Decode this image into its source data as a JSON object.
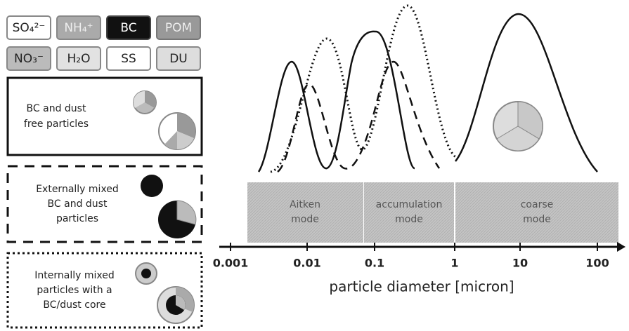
{
  "legend": {
    "items": [
      "SO₄²⁻",
      "NH₄⁺",
      "BC",
      "POM",
      "NO₃⁻",
      "H₂O",
      "SS",
      "DU"
    ]
  },
  "boxes": [
    {
      "lines": [
        "BC and dust",
        "free particles"
      ]
    },
    {
      "lines": [
        "Externally mixed",
        "BC and dust",
        "particles"
      ]
    },
    {
      "lines": [
        "Internally mixed",
        "particles with a",
        "BC/dust core"
      ]
    }
  ],
  "modes": [
    {
      "lines": [
        "Aitken",
        "mode"
      ]
    },
    {
      "lines": [
        "accumulation",
        "mode"
      ]
    },
    {
      "lines": [
        "coarse",
        "mode"
      ]
    }
  ],
  "axis": {
    "ticks": [
      "0.001",
      "0.01",
      "0.1",
      "1",
      "10",
      "100"
    ],
    "label": "particle diameter [micron]"
  }
}
